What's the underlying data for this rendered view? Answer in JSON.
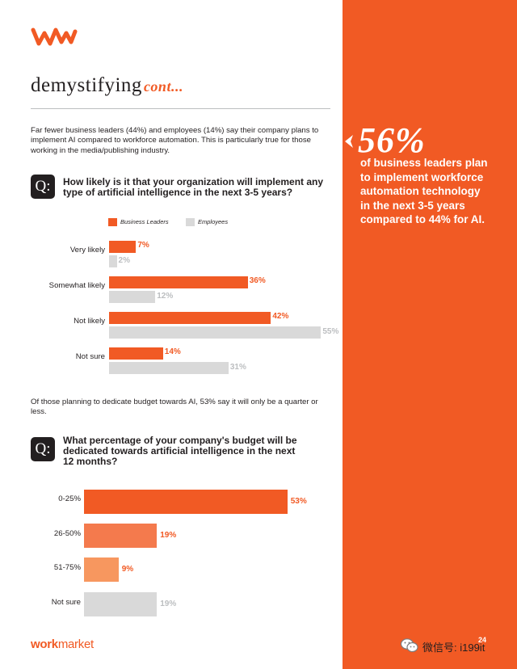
{
  "brand": {
    "color": "#f15a24",
    "logo_icon": "wm-logo-icon"
  },
  "section": {
    "title": "demystifying",
    "title_cont": "cont..."
  },
  "intro": "Far fewer business leaders (44%) and employees (14%) say their company plans to implement AI compared to workforce automation. This is particularly true for those working in the media/publishing industry.",
  "question1": {
    "badge": "Q:",
    "text": "How likely is it that your organization will implement any type of artificial intelligence in the next 3-5 years?"
  },
  "question2": {
    "badge": "Q:",
    "text": "What percentage of your company's budget will be dedicated towards artificial intelligence in the next 12 months?"
  },
  "mid_text": "Of those planning to dedicate budget towards AI, 53% say it will only be a quarter or less.",
  "chart_data": [
    {
      "type": "bar",
      "orientation": "horizontal",
      "categories": [
        "Very likely",
        "Somewhat likely",
        "Not likely",
        "Not sure"
      ],
      "series": [
        {
          "name": "Business Leaders",
          "color": "#f15a24",
          "values": [
            7,
            36,
            42,
            14
          ],
          "labels": [
            "7%",
            "36%",
            "42%",
            "14%"
          ]
        },
        {
          "name": "Employees",
          "color": "#d9d9d9",
          "values": [
            2,
            12,
            55,
            31
          ],
          "labels": [
            "2%",
            "12%",
            "55%",
            "31%"
          ]
        }
      ],
      "legend": "top-left",
      "grid": false
    },
    {
      "type": "bar",
      "orientation": "horizontal",
      "categories": [
        "0-25%",
        "26-50%",
        "51-75%",
        "Not sure"
      ],
      "values": [
        53,
        19,
        9,
        19
      ],
      "labels": [
        "53%",
        "19%",
        "9%",
        "19%"
      ],
      "colors": [
        "#f15a24",
        "#f47a4d",
        "#f7975f",
        "#d9d9d9"
      ],
      "label_colors": [
        "#f15a24",
        "#f15a24",
        "#f15a24",
        "#bcbec0"
      ],
      "grid": false
    }
  ],
  "sidebar": {
    "bg_color": "#f15a24",
    "arrow_icon": "chevron-left-icon",
    "stat": "56%",
    "stat_text": "of business leaders plan to implement workforce automation technology in the next 3-5 years compared to 44% for AI."
  },
  "footer": {
    "brand_bold": "work",
    "brand_light": "market",
    "page_number": "24",
    "watermark": "微信号: i199it",
    "watermark_icon": "wechat-icon"
  }
}
